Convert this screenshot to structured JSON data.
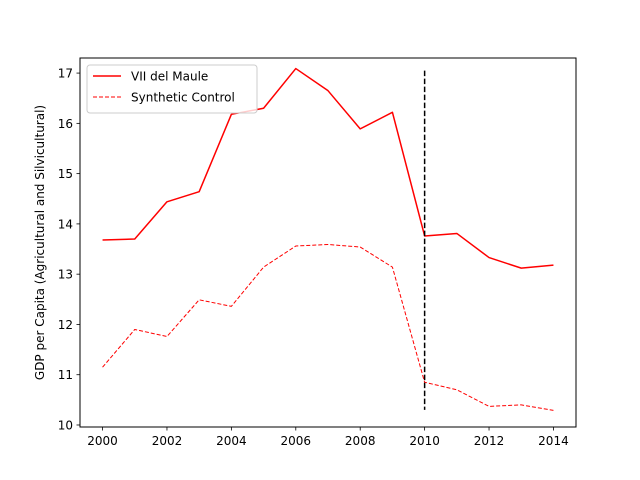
{
  "chart_data": {
    "type": "line",
    "title": "",
    "xlabel": "",
    "ylabel": "GDP per Capita (Agricultural and Silvicultural)",
    "x": [
      2000,
      2001,
      2002,
      2003,
      2004,
      2005,
      2006,
      2007,
      2008,
      2009,
      2010,
      2011,
      2012,
      2013,
      2014
    ],
    "xlim": [
      1999.3,
      2014.7
    ],
    "ylim": [
      9.96,
      17.3
    ],
    "xticks": [
      2000,
      2002,
      2004,
      2006,
      2008,
      2010,
      2012,
      2014
    ],
    "yticks": [
      10,
      11,
      12,
      13,
      14,
      15,
      16,
      17
    ],
    "grid": false,
    "legend_position": "top-left",
    "series": [
      {
        "name": "VII del Maule",
        "color": "#ff0000",
        "style": "solid",
        "values": [
          13.68,
          13.7,
          14.44,
          14.64,
          16.18,
          16.3,
          17.09,
          16.65,
          15.89,
          16.22,
          13.76,
          13.81,
          13.33,
          13.12,
          13.18
        ]
      },
      {
        "name": "Synthetic Control",
        "color": "#ff0000",
        "style": "dashed",
        "values": [
          11.15,
          11.9,
          11.76,
          12.49,
          12.36,
          13.14,
          13.56,
          13.59,
          13.54,
          13.14,
          10.85,
          10.7,
          10.37,
          10.4,
          10.29
        ]
      }
    ],
    "annotations": [
      {
        "type": "vline",
        "x": 2010,
        "y_from": 10.3,
        "y_to": 17.05,
        "color": "#000000",
        "style": "dashed"
      }
    ]
  }
}
